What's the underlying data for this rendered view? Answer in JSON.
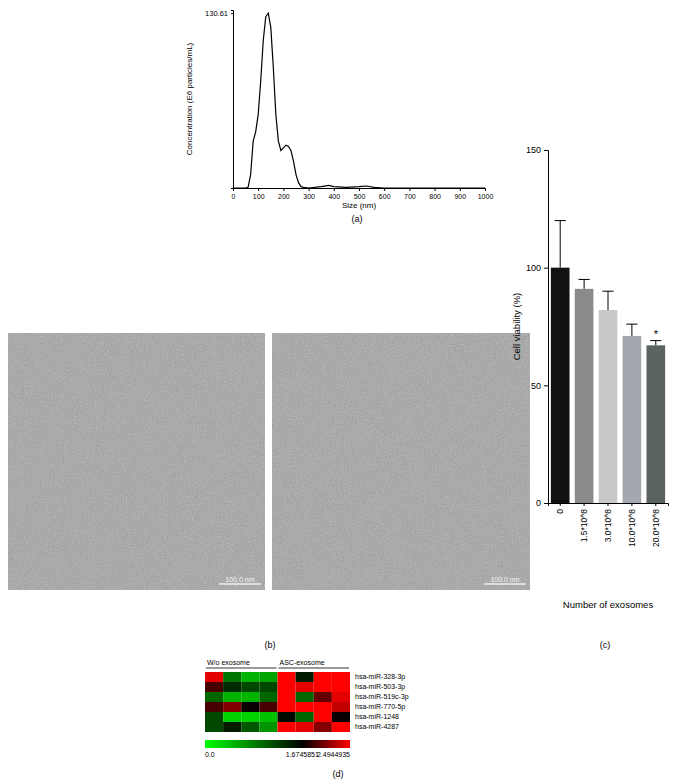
{
  "chart_data": [
    {
      "type": "line",
      "title": "(a)",
      "x_label": "Size (nm)",
      "y_label": "Concentration (E6 particles/mL)",
      "x": [
        0,
        50,
        60,
        70,
        80,
        90,
        100,
        110,
        120,
        130,
        140,
        150,
        160,
        170,
        180,
        190,
        200,
        210,
        220,
        230,
        240,
        250,
        260,
        270,
        280,
        300,
        350,
        380,
        400,
        450,
        500,
        530,
        560,
        600,
        700,
        800,
        900,
        1000
      ],
      "values": [
        0,
        0,
        0.5,
        10,
        35,
        42,
        55,
        80,
        110,
        128,
        130.61,
        120,
        90,
        55,
        35,
        28,
        30,
        32,
        31,
        28,
        20,
        10,
        4,
        1,
        0.5,
        0,
        1,
        2,
        1,
        0.5,
        1,
        1.5,
        0.5,
        0,
        0,
        0,
        0,
        0
      ],
      "color": "#000000",
      "xlim": [
        0,
        1000
      ],
      "xticks": [
        0,
        100,
        200,
        300,
        400,
        500,
        600,
        700,
        800,
        900,
        1000
      ],
      "ylim": [
        0,
        133
      ],
      "yticks": [
        130.61
      ]
    },
    {
      "type": "bar",
      "title": "(c)",
      "x_label": "Number of exosomes",
      "y_label": "Cell viability (%)",
      "categories": [
        "0",
        "1.5*10^8",
        "3.0*10^8",
        "10.0*10^8",
        "20.0*10^8"
      ],
      "values": [
        100,
        91,
        82,
        71,
        67
      ],
      "errors": [
        20,
        4,
        8,
        5,
        2
      ],
      "colors": [
        "#111111",
        "#8a8a8a",
        "#c8c8c8",
        "#a2a8ae",
        "#5a6262"
      ],
      "ylim": [
        0,
        150
      ],
      "yticks": [
        0,
        50,
        100,
        150
      ],
      "annotations": [
        {
          "x": "20.0*10^8",
          "text": "*"
        }
      ]
    },
    {
      "type": "heatmap",
      "title": "(d)",
      "column_groups": [
        {
          "label": "W/o exosome",
          "columns": 4
        },
        {
          "label": "ASC-exosome",
          "columns": 4
        }
      ],
      "rows": [
        "hsa-miR-328-3p",
        "hsa-miR-503-3p",
        "hsa-miR-519c-3p",
        "hsa-miR-770-5p",
        "hsa-miR-1248",
        "hsa-miR-4287"
      ],
      "cells": [
        [
          2.4,
          0.9,
          0.5,
          0.6,
          2.5,
          1.5,
          2.5,
          2.5
        ],
        [
          1.9,
          1.4,
          1.2,
          1.2,
          2.5,
          2.4,
          2.5,
          2.5
        ],
        [
          1.0,
          0.5,
          0.5,
          1.0,
          2.5,
          1.0,
          2.0,
          2.4
        ],
        [
          1.9,
          2.1,
          1.7,
          1.9,
          2.5,
          2.5,
          2.5,
          2.3
        ],
        [
          1.2,
          0.3,
          0.3,
          0.4,
          1.6,
          1.0,
          2.5,
          1.7
        ],
        [
          1.2,
          1.5,
          1.1,
          0.7,
          2.5,
          2.4,
          2.1,
          2.5
        ]
      ],
      "colorbar": {
        "range": [
          0,
          2.4944935
        ],
        "ticks": [
          {
            "value": 0,
            "label": "0.0"
          },
          1.6745851,
          2.4944935
        ],
        "colors": [
          "#00ff00",
          "#000000",
          "#ff0000"
        ]
      }
    }
  ],
  "images": {
    "title": "(b)",
    "scale_bar_labels": [
      "100.0 nm",
      "100.0 nm"
    ]
  }
}
